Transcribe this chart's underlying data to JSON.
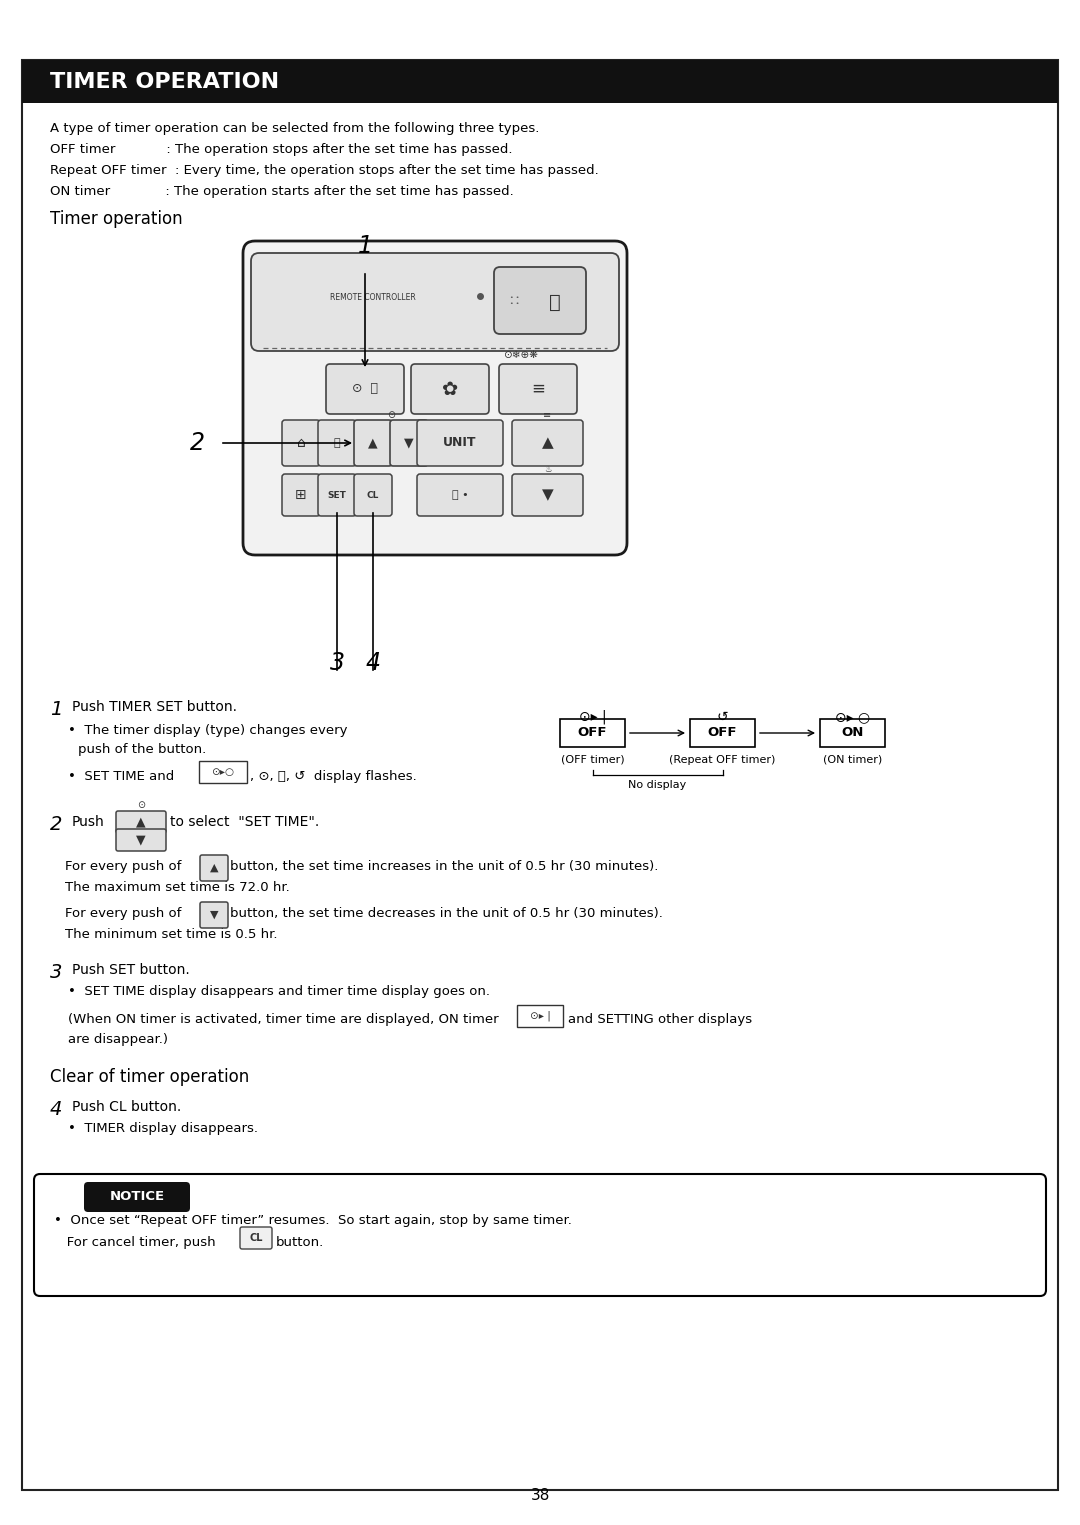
{
  "title": "TIMER OPERATION",
  "page_number": "38",
  "intro_lines": [
    "A type of timer operation can be selected from the following three types.",
    "OFF timer            : The operation stops after the set time has passed.",
    "Repeat OFF timer  : Every time, the operation stops after the set time has passed.",
    "ON timer             : The operation starts after the set time has passed."
  ],
  "sec1": "Timer operation",
  "sec2": "Clear of timer operation",
  "notice_lines": [
    "•  Once set “Repeat OFF timer” resumes.  So start again, stop by same timer.",
    "   For cancel timer, push  CL  button."
  ],
  "timer_icons": [
    "⊙▸ |",
    "↺",
    "⊙▸ ○"
  ],
  "timer_box_labels": [
    "OFF",
    "OFF",
    "ON"
  ],
  "timer_sub_labels": [
    "(OFF timer)",
    "(Repeat OFF timer)",
    "(ON timer)"
  ],
  "no_display": "No display"
}
